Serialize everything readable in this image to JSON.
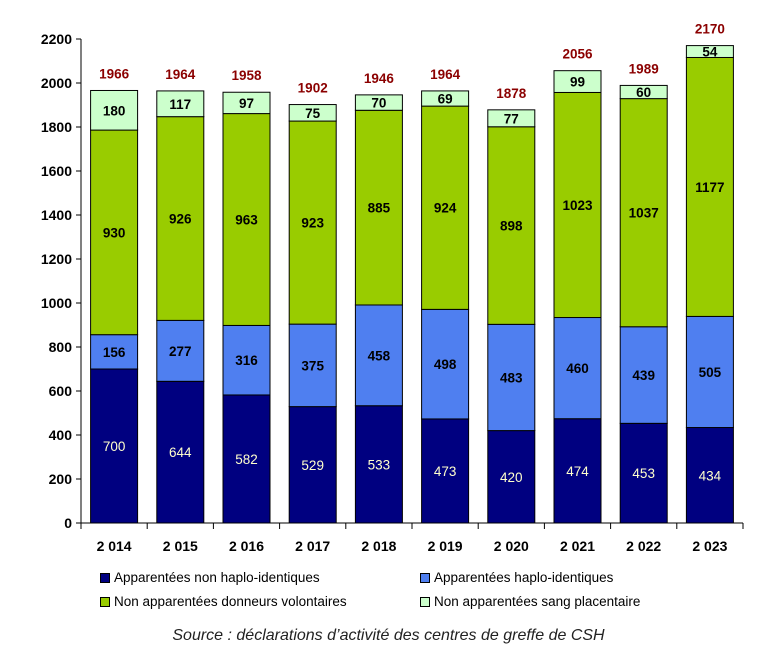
{
  "chart_data": {
    "type": "bar",
    "stacked": true,
    "categories": [
      "2 014",
      "2 015",
      "2 016",
      "2 017",
      "2 018",
      "2 019",
      "2 020",
      "2 021",
      "2 022",
      "2 023"
    ],
    "series": [
      {
        "name": "Apparentées non haplo-identiques",
        "color": "#000080",
        "label_color": "#ffffcc",
        "values": [
          700,
          644,
          582,
          529,
          533,
          473,
          420,
          474,
          453,
          434
        ]
      },
      {
        "name": "Apparentées haplo-identiques",
        "color": "#4f7ff0",
        "label_color": "#000000",
        "values": [
          156,
          277,
          316,
          375,
          458,
          498,
          483,
          460,
          439,
          505
        ]
      },
      {
        "name": "Non apparentées donneurs volontaires",
        "color": "#99cc00",
        "label_color": "#000000",
        "values": [
          930,
          926,
          963,
          923,
          885,
          924,
          898,
          1023,
          1037,
          1177
        ]
      },
      {
        "name": "Non apparentées sang placentaire",
        "color": "#ccffcc",
        "label_color": "#000000",
        "values": [
          180,
          117,
          97,
          75,
          70,
          69,
          77,
          99,
          60,
          54
        ]
      }
    ],
    "totals": [
      1966,
      1964,
      1958,
      1902,
      1946,
      1964,
      1878,
      2056,
      1989,
      2170
    ],
    "totals_color": "#8b0000",
    "ylim": [
      0,
      2200
    ],
    "yticks": [
      0,
      200,
      400,
      600,
      800,
      1000,
      1200,
      1400,
      1600,
      1800,
      2000,
      2200
    ],
    "legend_position": "bottom",
    "grid": false
  },
  "source": "Source : déclarations d’activité des centres de greffe de CSH"
}
